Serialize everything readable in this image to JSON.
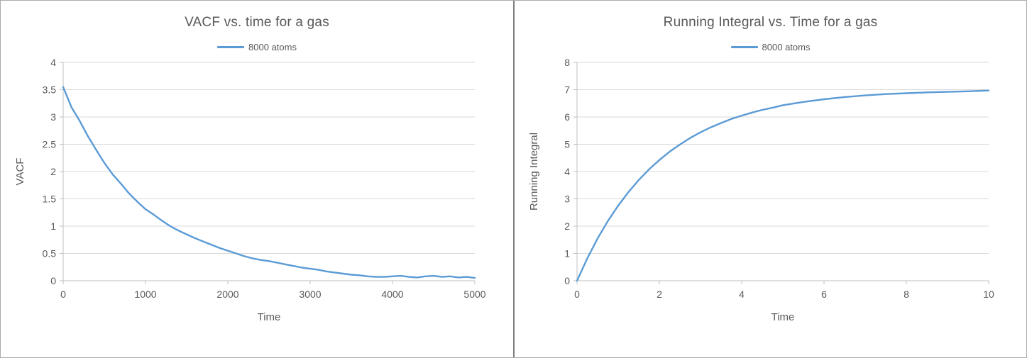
{
  "chart_data": [
    {
      "type": "line",
      "title": "VACF vs. time for a gas",
      "legend": [
        "8000 atoms"
      ],
      "legend_position": "top",
      "xlabel": "Time",
      "ylabel": "VACF",
      "xlim": [
        0,
        5000
      ],
      "ylim": [
        0,
        4
      ],
      "xticks": [
        0,
        1000,
        2000,
        3000,
        4000,
        5000
      ],
      "yticks": [
        0,
        0.5,
        1,
        1.5,
        2,
        2.5,
        3,
        3.5,
        4
      ],
      "grid": "horizontal",
      "line_color": "#5b9bd5",
      "gridline_color": "#d9d9d9",
      "axis_color": "#bfbfbf",
      "text_color": "#595959",
      "series": [
        {
          "name": "8000 atoms",
          "x": [
            0,
            100,
            200,
            300,
            400,
            500,
            600,
            700,
            800,
            900,
            1000,
            1100,
            1200,
            1300,
            1400,
            1500,
            1600,
            1700,
            1800,
            1900,
            2000,
            2100,
            2200,
            2300,
            2400,
            2500,
            2600,
            2700,
            2800,
            2900,
            3000,
            3100,
            3200,
            3300,
            3400,
            3500,
            3600,
            3700,
            3800,
            3900,
            4000,
            4100,
            4200,
            4300,
            4400,
            4500,
            4600,
            4700,
            4800,
            4900,
            5000
          ],
          "y": [
            3.55,
            3.18,
            2.93,
            2.65,
            2.4,
            2.16,
            1.95,
            1.78,
            1.6,
            1.45,
            1.31,
            1.21,
            1.1,
            1.0,
            0.92,
            0.85,
            0.78,
            0.72,
            0.66,
            0.6,
            0.55,
            0.5,
            0.45,
            0.41,
            0.38,
            0.36,
            0.33,
            0.3,
            0.27,
            0.24,
            0.22,
            0.2,
            0.17,
            0.15,
            0.13,
            0.11,
            0.1,
            0.08,
            0.07,
            0.07,
            0.08,
            0.09,
            0.07,
            0.06,
            0.08,
            0.09,
            0.07,
            0.08,
            0.06,
            0.07,
            0.05
          ]
        }
      ]
    },
    {
      "type": "line",
      "title": "Running Integral vs. Time for a gas",
      "legend": [
        "8000 atoms"
      ],
      "legend_position": "top",
      "xlabel": "Time",
      "ylabel": "Running Integral",
      "xlim": [
        0,
        10
      ],
      "ylim": [
        0,
        8
      ],
      "xticks": [
        0,
        2,
        4,
        6,
        8,
        10
      ],
      "yticks": [
        0,
        1,
        2,
        3,
        4,
        5,
        6,
        7,
        8
      ],
      "grid": "horizontal",
      "line_color": "#5b9bd5",
      "gridline_color": "#d9d9d9",
      "axis_color": "#bfbfbf",
      "text_color": "#595959",
      "series": [
        {
          "name": "8000 atoms",
          "x": [
            0,
            0.25,
            0.5,
            0.75,
            1,
            1.25,
            1.5,
            1.75,
            2,
            2.25,
            2.5,
            2.75,
            3,
            3.25,
            3.5,
            3.75,
            4,
            4.25,
            4.5,
            4.75,
            5,
            5.5,
            6,
            6.5,
            7,
            7.5,
            8,
            8.5,
            9,
            9.5,
            10
          ],
          "y": [
            0,
            0.82,
            1.55,
            2.19,
            2.75,
            3.25,
            3.69,
            4.08,
            4.42,
            4.73,
            4.99,
            5.23,
            5.44,
            5.62,
            5.78,
            5.93,
            6.05,
            6.16,
            6.26,
            6.34,
            6.43,
            6.55,
            6.65,
            6.73,
            6.79,
            6.84,
            6.87,
            6.9,
            6.92,
            6.94,
            6.97
          ]
        }
      ]
    }
  ]
}
